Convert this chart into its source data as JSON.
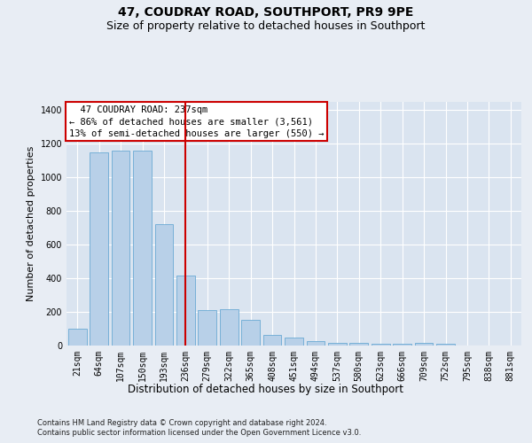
{
  "title": "47, COUDRAY ROAD, SOUTHPORT, PR9 9PE",
  "subtitle": "Size of property relative to detached houses in Southport",
  "xlabel": "Distribution of detached houses by size in Southport",
  "ylabel": "Number of detached properties",
  "footer_line1": "Contains HM Land Registry data © Crown copyright and database right 2024.",
  "footer_line2": "Contains public sector information licensed under the Open Government Licence v3.0.",
  "categories": [
    "21sqm",
    "64sqm",
    "107sqm",
    "150sqm",
    "193sqm",
    "236sqm",
    "279sqm",
    "322sqm",
    "365sqm",
    "408sqm",
    "451sqm",
    "494sqm",
    "537sqm",
    "580sqm",
    "623sqm",
    "666sqm",
    "709sqm",
    "752sqm",
    "795sqm",
    "838sqm",
    "881sqm"
  ],
  "values": [
    100,
    1150,
    1160,
    1160,
    720,
    415,
    210,
    215,
    155,
    65,
    45,
    28,
    18,
    15,
    12,
    10,
    15,
    8,
    2,
    0,
    0
  ],
  "bar_color": "#b8d0e8",
  "bar_edge_color": "#6aaad4",
  "highlight_index": 5,
  "highlight_line_color": "#cc0000",
  "annotation_text": "  47 COUDRAY ROAD: 237sqm\n← 86% of detached houses are smaller (3,561)\n13% of semi-detached houses are larger (550) →",
  "annotation_box_color": "#ffffff",
  "annotation_box_edge_color": "#cc0000",
  "ylim": [
    0,
    1450
  ],
  "yticks": [
    0,
    200,
    400,
    600,
    800,
    1000,
    1200,
    1400
  ],
  "background_color": "#e8edf4",
  "plot_background_color": "#dae4f0",
  "grid_color": "#ffffff",
  "title_fontsize": 10,
  "subtitle_fontsize": 9,
  "ylabel_fontsize": 8,
  "xlabel_fontsize": 8.5,
  "tick_fontsize": 7,
  "annotation_fontsize": 7.5,
  "footer_fontsize": 6
}
